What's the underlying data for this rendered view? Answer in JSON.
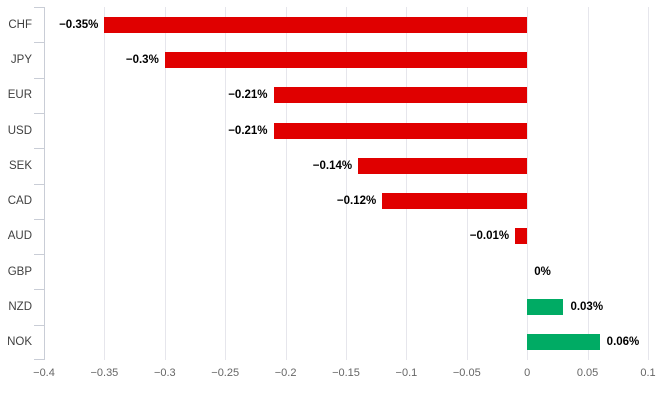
{
  "chart_data": {
    "type": "bar",
    "orientation": "horizontal",
    "title": "",
    "xlabel": "",
    "ylabel": "",
    "categories": [
      "CHF",
      "JPY",
      "EUR",
      "USD",
      "SEK",
      "CAD",
      "AUD",
      "GBP",
      "NZD",
      "NOK"
    ],
    "values": [
      -0.35,
      -0.3,
      -0.21,
      -0.21,
      -0.14,
      -0.12,
      -0.01,
      0,
      0.03,
      0.06
    ],
    "value_labels": [
      "−0.35%",
      "−0.3%",
      "−0.21%",
      "−0.21%",
      "−0.14%",
      "−0.12%",
      "−0.01%",
      "0%",
      "0.03%",
      "0.06%"
    ],
    "xlim": [
      -0.4,
      0.1
    ],
    "xticks": [
      -0.4,
      -0.35,
      -0.3,
      -0.25,
      -0.2,
      -0.15,
      -0.1,
      -0.05,
      0,
      0.05,
      0.1
    ],
    "xtick_labels": [
      "−0.4",
      "−0.35",
      "−0.3",
      "−0.25",
      "−0.2",
      "−0.15",
      "−0.1",
      "−0.05",
      "0",
      "0.05",
      "0.1"
    ],
    "grid": true,
    "legend": false,
    "colors": {
      "negative_bar": "#e00000",
      "positive_bar": "#00ab64",
      "gridline": "#e6e6ec",
      "axis_line": "#c9cdd6",
      "category_label": "#404040",
      "tick_label": "#666666",
      "value_label": "#000000"
    }
  }
}
